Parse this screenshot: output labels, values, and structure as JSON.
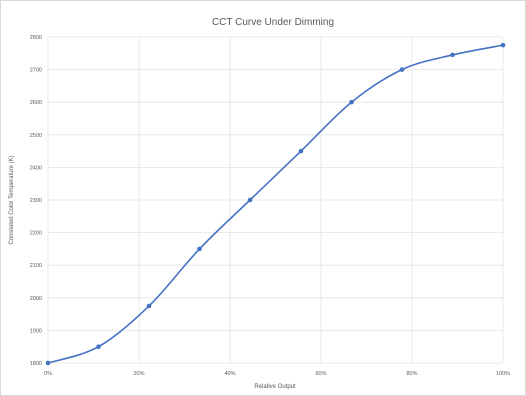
{
  "chart_data": {
    "type": "line",
    "title": "CCT Curve Under Dimming",
    "xlabel": "Relative Output",
    "ylabel": "Correlated Color Temperature (K)",
    "xlim": [
      0,
      1
    ],
    "ylim": [
      1800,
      2800
    ],
    "x_ticks": [
      "0%",
      "20%",
      "40%",
      "60%",
      "80%",
      "100%"
    ],
    "y_ticks": [
      "1800",
      "1900",
      "2000",
      "2100",
      "2200",
      "2300",
      "2400",
      "2500",
      "2600",
      "2700",
      "2800"
    ],
    "grid": true,
    "legend": "none",
    "series": [
      {
        "color": "#4472c4",
        "smooth": true,
        "x": [
          0.0,
          0.111,
          0.222,
          0.333,
          0.444,
          0.556,
          0.667,
          0.778,
          0.889,
          1.0
        ],
        "y": [
          1800,
          1850,
          1975,
          2150,
          2300,
          2450,
          2600,
          2700,
          2745,
          2775
        ]
      }
    ]
  }
}
